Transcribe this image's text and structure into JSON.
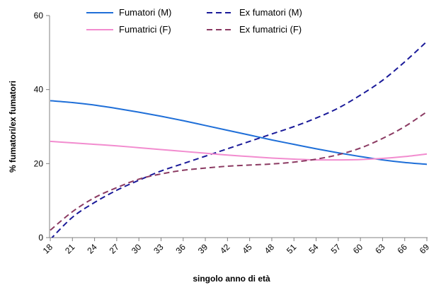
{
  "chart_data": {
    "type": "line",
    "xlabel": "singolo anno di età",
    "ylabel": "% fumatori/ex fumatori",
    "ylim": [
      0,
      60
    ],
    "yticks": [
      0,
      20,
      40,
      60
    ],
    "xlim": [
      18,
      69
    ],
    "xticks": [
      18,
      21,
      24,
      27,
      30,
      33,
      36,
      39,
      42,
      45,
      48,
      51,
      54,
      57,
      60,
      63,
      66,
      69
    ],
    "grid": false,
    "legend_position": "top",
    "series": [
      {
        "name": "Fumatori (M)",
        "color": "#1f6fd8",
        "dash": "solid",
        "x": [
          18,
          21,
          24,
          27,
          30,
          33,
          36,
          39,
          42,
          45,
          48,
          51,
          54,
          57,
          60,
          63,
          66,
          69
        ],
        "values": [
          37.0,
          36.5,
          35.8,
          34.9,
          33.9,
          32.8,
          31.6,
          30.3,
          29.0,
          27.7,
          26.4,
          25.2,
          24.0,
          22.9,
          21.9,
          21.0,
          20.3,
          19.8
        ]
      },
      {
        "name": "Ex fumatori (M)",
        "color": "#1a1a99",
        "dash": "dashed",
        "x": [
          18,
          21,
          24,
          27,
          30,
          33,
          36,
          39,
          42,
          45,
          48,
          51,
          54,
          57,
          60,
          63,
          66,
          69
        ],
        "values": [
          -0.5,
          5.5,
          9.5,
          12.8,
          15.5,
          18.0,
          20.0,
          22.0,
          24.0,
          26.0,
          28.0,
          30.0,
          32.3,
          35.0,
          38.5,
          42.5,
          47.5,
          53.0
        ]
      },
      {
        "name": "Fumatrici (F)",
        "color": "#f28ccf",
        "dash": "solid",
        "x": [
          18,
          21,
          24,
          27,
          30,
          33,
          36,
          39,
          42,
          45,
          48,
          51,
          54,
          57,
          60,
          63,
          66,
          69
        ],
        "values": [
          26.0,
          25.6,
          25.2,
          24.8,
          24.3,
          23.8,
          23.3,
          22.8,
          22.3,
          21.9,
          21.5,
          21.2,
          21.0,
          21.0,
          21.1,
          21.4,
          21.9,
          22.6
        ]
      },
      {
        "name": "Ex fumatrici (F)",
        "color": "#8b3a62",
        "dash": "dashed",
        "x": [
          18,
          21,
          24,
          27,
          30,
          33,
          36,
          39,
          42,
          45,
          48,
          51,
          54,
          57,
          60,
          63,
          66,
          69
        ],
        "values": [
          2.0,
          7.0,
          10.8,
          13.5,
          15.8,
          17.2,
          18.2,
          18.8,
          19.3,
          19.6,
          19.9,
          20.4,
          21.2,
          22.4,
          24.2,
          26.8,
          30.0,
          34.0
        ]
      }
    ]
  }
}
